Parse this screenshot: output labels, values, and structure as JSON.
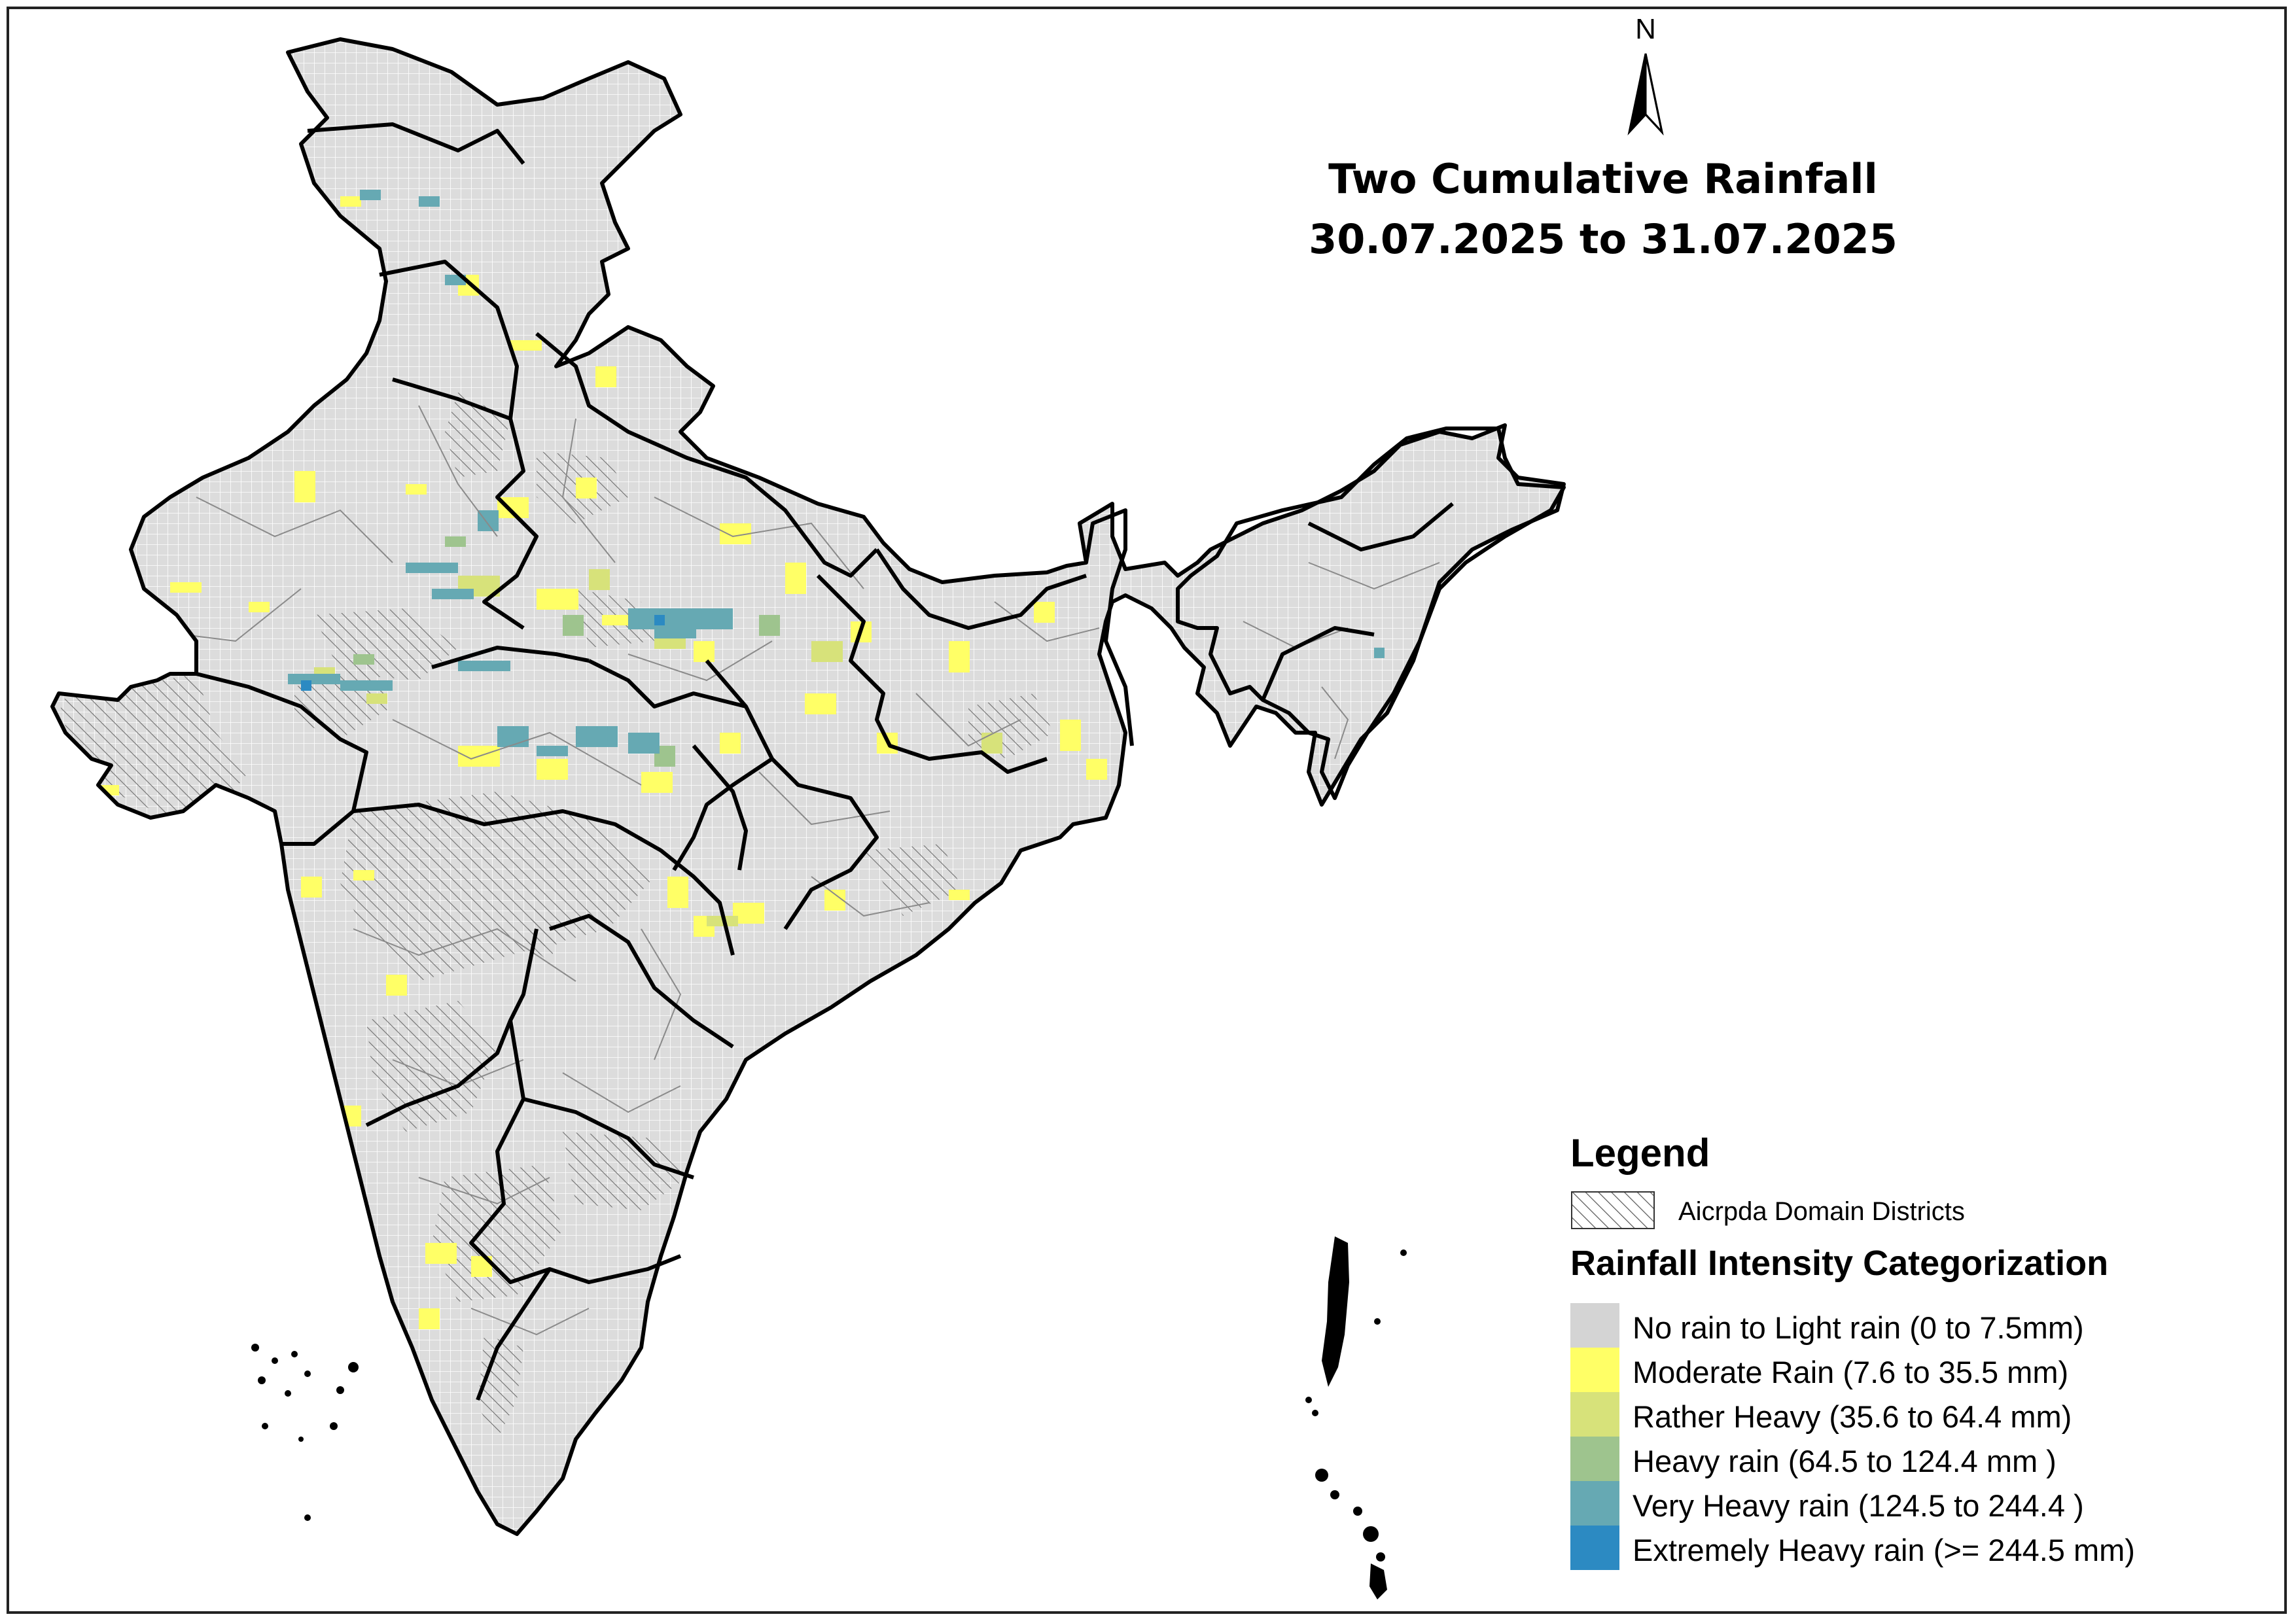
{
  "title": {
    "line1": "Two Cumulative Rainfall",
    "line2": "30.07.2025 to 31.07.2025"
  },
  "north_arrow": {
    "label": "N"
  },
  "legend": {
    "title": "Legend",
    "hatch_label": "Aicrpda Domain Districts",
    "category_title": "Rainfall Intensity Categorization",
    "categories": [
      {
        "label": "No rain to Light rain (0 to 7.5mm)",
        "color": "#d4d4d4"
      },
      {
        "label": "Moderate Rain (7.6 to 35.5 mm)",
        "color": "#ffff66"
      },
      {
        "label": "Rather Heavy (35.6 to 64.4 mm)",
        "color": "#d7e27a"
      },
      {
        "label": "Heavy rain (64.5 to 124.4 mm )",
        "color": "#9ec48e"
      },
      {
        "label": "Very Heavy rain (124.5 to 244.4 )",
        "color": "#66a9b3"
      },
      {
        "label": "Extremely Heavy rain  (>= 244.5 mm)",
        "color": "#2c8ac2"
      }
    ]
  }
}
